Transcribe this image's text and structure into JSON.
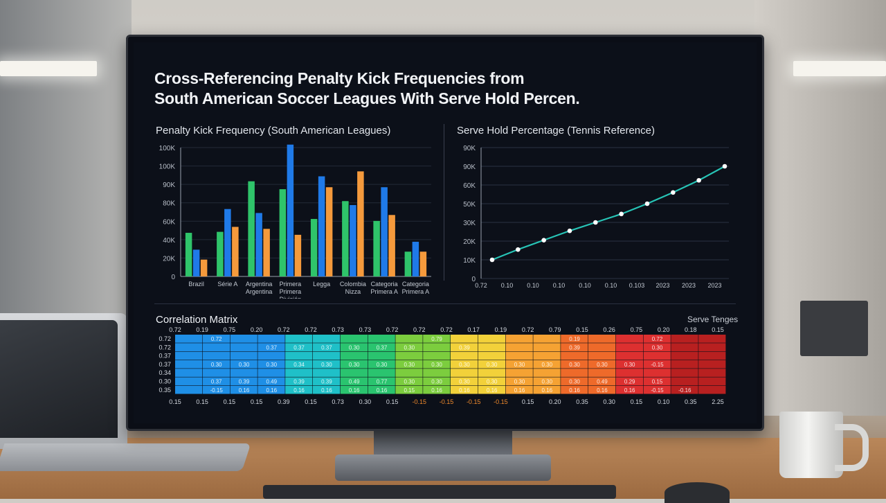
{
  "title_line1": "Cross-Referencing Penalty Kick Frequencies from",
  "title_line2": "South American Soccer Leagues With Serve Hold Percen.",
  "bar_panel_title": "Penalty Kick Frequency (South American Leagues)",
  "line_panel_title": "Serve Hold Percentage (Tennis Reference)",
  "matrix_title": "Correlation Matrix",
  "matrix_right_label": "Serve Tenges",
  "colors": {
    "green": "#2fc46a",
    "blue": "#1f7ae8",
    "orange": "#f59a3c",
    "teal": "#27c4b6",
    "screen_bg": "#0c1019"
  },
  "chart_data": [
    {
      "type": "bar",
      "title": "Penalty Kick Frequency (South American Leagues)",
      "y_ticks": [
        "100K",
        "100K",
        "90K",
        "80K",
        "60K",
        "40K",
        "20K",
        "0"
      ],
      "ylim": [
        0,
        130
      ],
      "categories": [
        [
          "Brazil"
        ],
        [
          "Série A"
        ],
        [
          "Argentina",
          "Argentina"
        ],
        [
          "Primera",
          "Primera",
          "División"
        ],
        [
          "Legga"
        ],
        [
          "Colombia",
          "Nizza"
        ],
        [
          "Categoria",
          "Primera A"
        ],
        [
          "Categoria",
          "Primera A"
        ]
      ],
      "series": [
        {
          "values": [
            44,
            45,
            96,
            88,
            58,
            76,
            56,
            25
          ]
        },
        {
          "values": [
            27,
            68,
            64,
            133,
            101,
            72,
            90,
            35
          ]
        },
        {
          "values": [
            17,
            50,
            48,
            42,
            90,
            106,
            62,
            25
          ]
        }
      ]
    },
    {
      "type": "line",
      "title": "Serve Hold Percentage (Tennis Reference)",
      "y_ticks": [
        "90K",
        "90K",
        "60K",
        "50K",
        "30K",
        "20K",
        "10K",
        "0"
      ],
      "x_ticks": [
        "0.72",
        "0.10",
        "0.10",
        "0.10",
        "0.10",
        "0.10",
        "0.103",
        "2023",
        "2023",
        "2023"
      ],
      "ylim": [
        0,
        70
      ],
      "values": [
        10,
        15.5,
        20.5,
        25.5,
        30,
        34.5,
        40,
        46,
        52.5,
        60
      ]
    },
    {
      "type": "heatmap",
      "title": "Correlation Matrix",
      "top_labels": [
        "0.72",
        "0.19",
        "0.75",
        "0.20",
        "0.72",
        "0.72",
        "0.73",
        "0.73",
        "0.72",
        "0.72",
        "0.72",
        "0.17",
        "0.19",
        "0.72",
        "0.79",
        "0.15",
        "0.26",
        "0.75",
        "0.20",
        "0.18",
        "0.15"
      ],
      "row_labels": [
        "0.72",
        "0.72",
        "0.37",
        "0.37",
        "0.34",
        "0.30",
        "0.35"
      ],
      "bottom_labels": [
        "0.15",
        "0.15",
        "0.15",
        "0.15",
        "0.39",
        "0.15",
        "0.73",
        "0.30",
        "0.15",
        "-0.15",
        "-0.15",
        "-0.15",
        "-0.15",
        "0.15",
        "0.20",
        "0.35",
        "0.30",
        "0.15",
        "0.10",
        "0.35",
        "2.25"
      ],
      "cell_labels": [
        [
          "",
          "0.72",
          "",
          "",
          "",
          "",
          "",
          "",
          "",
          "0.79",
          "",
          "",
          "",
          "",
          "0.19",
          "",
          "",
          "0.72",
          "",
          ""
        ],
        [
          "",
          "",
          "",
          "0.37",
          "0.37",
          "0.37",
          "0.30",
          "0.37",
          "0.30",
          "",
          "0.39",
          "",
          "",
          "",
          "0.39",
          "",
          "",
          "0.30",
          "",
          ""
        ],
        [
          "",
          "",
          "",
          "",
          "",
          "",
          "",
          "",
          "",
          "",
          "",
          "",
          "",
          "",
          "",
          "",
          "",
          "",
          "",
          ""
        ],
        [
          "",
          "0.30",
          "0.30",
          "0.30",
          "0.34",
          "0.30",
          "0.30",
          "0.30",
          "0.30",
          "0.30",
          "0.30",
          "0.30",
          "0.30",
          "0.30",
          "0.30",
          "0.30",
          "0.30",
          "-0.15",
          "",
          ""
        ],
        [
          "",
          "",
          "",
          "",
          "",
          "",
          "",
          "",
          "",
          "",
          "",
          "",
          "",
          "",
          "",
          "",
          "",
          "",
          "",
          ""
        ],
        [
          "",
          "0.37",
          "0.39",
          "0.49",
          "0.39",
          "0.39",
          "0.49",
          "0.77",
          "0.30",
          "0.30",
          "0.30",
          "0.30",
          "0.30",
          "0.30",
          "0.30",
          "0.49",
          "0.29",
          "0.15",
          "",
          ""
        ],
        [
          "",
          "-0.15",
          "0.16",
          "0.16",
          "0.16",
          "0.16",
          "0.16",
          "0.16",
          "0.15",
          "0.16",
          "0.16",
          "0.16",
          "0.16",
          "0.16",
          "0.16",
          "0.16",
          "0.16",
          "-0.15",
          "-0.16",
          ""
        ]
      ]
    }
  ]
}
